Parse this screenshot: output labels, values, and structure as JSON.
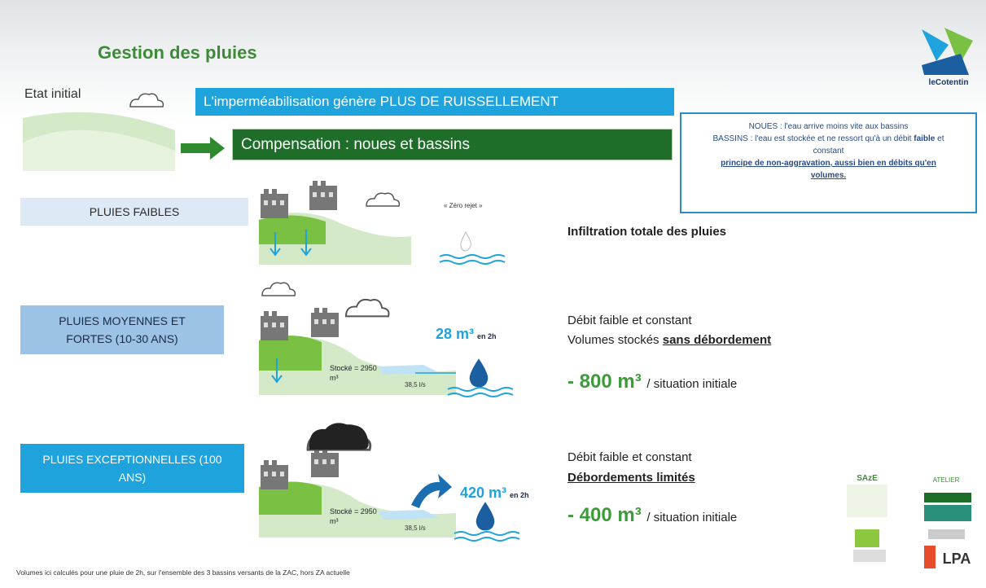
{
  "header": {
    "title": "Gestion des pluies",
    "logo": "leCotentin"
  },
  "initial": {
    "label": "Etat initial",
    "banner": "L'imperméabilisation génère PLUS DE RUISSELLEMENT",
    "compensation": "Compensation : noues et bassins"
  },
  "info": {
    "noues": "NOUES : l'eau arrive moins vite aux bassins",
    "bassins": "BASSINS : l'eau est stockée et ne ressort qu'à un débit",
    "bassins_bold": "faible",
    "bassins_end": "et constant",
    "principle": "principe de non-aggravation, aussi bien en débits qu'en volumes."
  },
  "rows": [
    {
      "label": "PLUIES FAIBLES",
      "note": "« Zéro rejet »",
      "result": "Infiltration totale des pluies"
    },
    {
      "label": "PLUIES MOYENNES ET FORTES (10-30 ANS)",
      "stock": "Stocké = 2950 m³",
      "flow": "38,5 l/s",
      "volume": "28 m³",
      "duration": "en 2h",
      "line1": "Débit faible et constant",
      "line2": "Volumes stockés",
      "line2_bold": "sans débordement",
      "gain": "- 800 m³",
      "gain_note": "/ situation initiale"
    },
    {
      "label": "PLUIES EXCEPTIONNELLES (100 ANS)",
      "stock": "Stocké = 2950 m³",
      "flow": "38,5 l/s",
      "volume": "420 m³",
      "duration": "en 2h",
      "line1": "Débit faible et constant",
      "line2_bold": "Débordements limités",
      "gain": "- 400 m³",
      "gain_note": "/ situation initiale"
    }
  ],
  "partners": [
    "SAzE",
    "ATELIER",
    "LPA"
  ],
  "footer": "Volumes ici calculés pour une pluie de 2h, sur l'ensemble des 3 bassins versants de la ZAC, hors ZA actuelle"
}
